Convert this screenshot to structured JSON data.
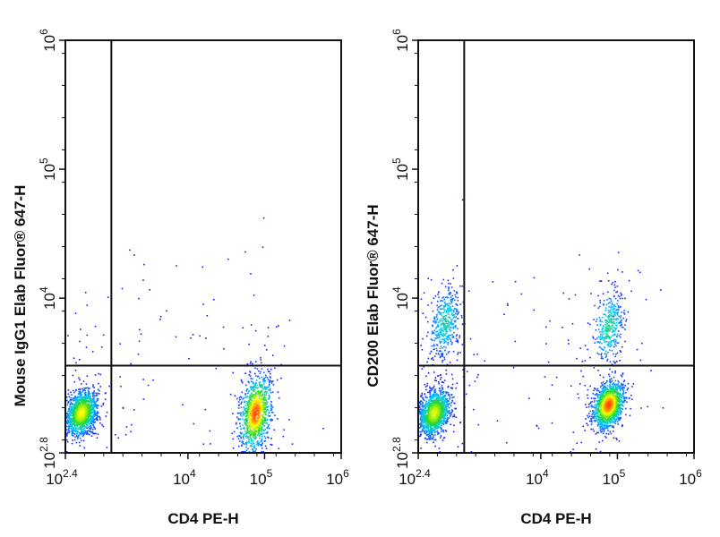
{
  "chart_data": [
    {
      "type": "scatter",
      "subtype": "flow-cytometry-density-dot-plot",
      "xlabel": "CD4 PE-H",
      "ylabel": "Mouse IgG1 Elab Fluor® 647-H",
      "x_scale": "log",
      "y_scale": "log",
      "xlim": [
        251,
        1000000
      ],
      "ylim": [
        631,
        1000000
      ],
      "x_ticks": [
        {
          "base": "10",
          "exp": "2.4"
        },
        {
          "base": "10",
          "exp": "4"
        },
        {
          "base": "10",
          "exp": "5"
        },
        {
          "base": "10",
          "exp": "6"
        }
      ],
      "y_ticks": [
        {
          "base": "10",
          "exp": "2.8"
        },
        {
          "base": "10",
          "exp": "4"
        },
        {
          "base": "10",
          "exp": "5"
        },
        {
          "base": "10",
          "exp": "6"
        }
      ],
      "quadrant_gate": {
        "x": 1000,
        "y": 3000
      },
      "color_scale": [
        "#1a1aff",
        "#00c8ff",
        "#26d926",
        "#ffff00",
        "#ff1a00"
      ],
      "populations": [
        {
          "center": [
            400,
            1300
          ],
          "count": 1400,
          "color_scale_top": 0.75,
          "note": "CD4-negative cells"
        },
        {
          "center": [
            75000,
            1300
          ],
          "count": 1100,
          "color_scale_top": 0.95,
          "note": "CD4-positive cells"
        }
      ]
    },
    {
      "type": "scatter",
      "subtype": "flow-cytometry-density-dot-plot",
      "xlabel": "CD4 PE-H",
      "ylabel": "CD200 Elab Fluor® 647-H",
      "x_scale": "log",
      "y_scale": "log",
      "xlim": [
        251,
        1000000
      ],
      "ylim": [
        631,
        1000000
      ],
      "x_ticks": [
        {
          "base": "10",
          "exp": "2.4"
        },
        {
          "base": "10",
          "exp": "4"
        },
        {
          "base": "10",
          "exp": "5"
        },
        {
          "base": "10",
          "exp": "6"
        }
      ],
      "y_ticks": [
        {
          "base": "10",
          "exp": "2.8"
        },
        {
          "base": "10",
          "exp": "4"
        },
        {
          "base": "10",
          "exp": "5"
        },
        {
          "base": "10",
          "exp": "6"
        }
      ],
      "quadrant_gate": {
        "x": 1000,
        "y": 3000
      },
      "color_scale": [
        "#1a1aff",
        "#00c8ff",
        "#26d926",
        "#ffff00",
        "#ff1a00"
      ],
      "populations": [
        {
          "center": [
            400,
            1300
          ],
          "count": 1300,
          "color_scale_top": 0.72,
          "note": "CD4-negative, CD200-low"
        },
        {
          "center": [
            550,
            6500
          ],
          "count": 420,
          "color_scale_top": 0.35,
          "note": "CD4-negative, CD200-positive"
        },
        {
          "center": [
            75000,
            1500
          ],
          "count": 1500,
          "color_scale_top": 0.95,
          "note": "CD4-positive, CD200-low"
        },
        {
          "center": [
            75000,
            6000
          ],
          "count": 350,
          "color_scale_top": 0.4,
          "note": "CD4-positive, CD200-positive"
        }
      ]
    }
  ]
}
